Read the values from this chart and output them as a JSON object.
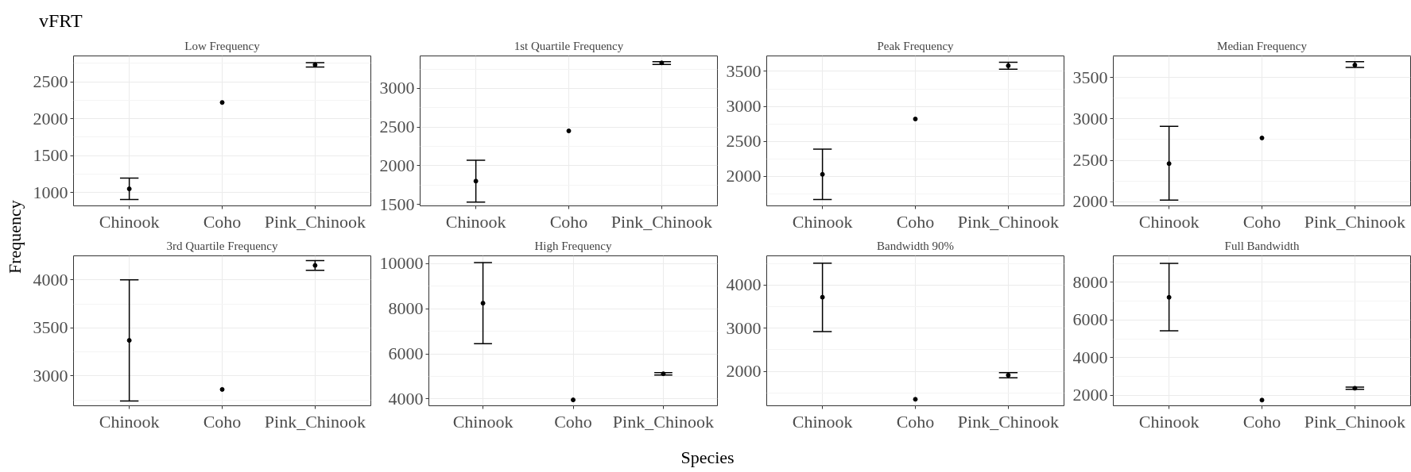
{
  "chart_data": [
    {
      "type": "scatter",
      "title": "Low Frequency",
      "annotations": [
        "vFRT",
        "Frequency",
        "Species"
      ],
      "categories": [
        "Chinook",
        "Coho",
        "Pink_Chinook"
      ],
      "values": [
        1050,
        2220,
        2730
      ],
      "errors": [
        [
          905,
          1195
        ],
        null,
        [
          2700,
          2760
        ]
      ],
      "ylim": [
        820,
        2850
      ],
      "yticks": [
        1000,
        1500,
        2000,
        2500
      ],
      "grid": true,
      "marker": "circle",
      "color": "#000000"
    },
    {
      "type": "scatter",
      "title": "1st Quartile Frequency",
      "categories": [
        "Chinook",
        "Coho",
        "Pink_Chinook"
      ],
      "values": [
        1800,
        2450,
        3330
      ],
      "errors": [
        [
          1530,
          2070
        ],
        null,
        [
          3310,
          3345
        ]
      ],
      "ylim": [
        1480,
        3420
      ],
      "yticks": [
        1500,
        2000,
        2500,
        3000
      ],
      "grid": true,
      "marker": "circle",
      "color": "#000000"
    },
    {
      "type": "scatter",
      "title": "Peak Frequency",
      "categories": [
        "Chinook",
        "Coho",
        "Pink_Chinook"
      ],
      "values": [
        2030,
        2820,
        3580
      ],
      "errors": [
        [
          1670,
          2390
        ],
        null,
        [
          3530,
          3630
        ]
      ],
      "ylim": [
        1580,
        3720
      ],
      "yticks": [
        2000,
        2500,
        3000,
        3500
      ],
      "grid": true,
      "marker": "circle",
      "color": "#000000"
    },
    {
      "type": "scatter",
      "title": "Median Frequency",
      "categories": [
        "Chinook",
        "Coho",
        "Pink_Chinook"
      ],
      "values": [
        2460,
        2770,
        3650
      ],
      "errors": [
        [
          2020,
          2910
        ],
        null,
        [
          3620,
          3690
        ]
      ],
      "ylim": [
        1950,
        3760
      ],
      "yticks": [
        2000,
        2500,
        3000,
        3500
      ],
      "grid": true,
      "marker": "circle",
      "color": "#000000"
    },
    {
      "type": "scatter",
      "title": "3rd Quartile Frequency",
      "categories": [
        "Chinook",
        "Coho",
        "Pink_Chinook"
      ],
      "values": [
        3370,
        2860,
        4150
      ],
      "errors": [
        [
          2740,
          4000
        ],
        null,
        [
          4100,
          4200
        ]
      ],
      "ylim": [
        2690,
        4250
      ],
      "yticks": [
        3000,
        3500,
        4000
      ],
      "grid": true,
      "marker": "circle",
      "color": "#000000"
    },
    {
      "type": "scatter",
      "title": "High Frequency",
      "categories": [
        "Chinook",
        "Coho",
        "Pink_Chinook"
      ],
      "values": [
        8250,
        3960,
        5120
      ],
      "errors": [
        [
          6450,
          10050
        ],
        null,
        [
          5060,
          5170
        ]
      ],
      "ylim": [
        3700,
        10350
      ],
      "yticks": [
        4000,
        6000,
        8000,
        10000
      ],
      "grid": true,
      "marker": "circle",
      "color": "#000000"
    },
    {
      "type": "scatter",
      "title": "Bandwidth 90%",
      "categories": [
        "Chinook",
        "Coho",
        "Pink_Chinook"
      ],
      "values": [
        3720,
        1350,
        1910
      ],
      "errors": [
        [
          2920,
          4510
        ],
        null,
        [
          1850,
          1970
        ]
      ],
      "ylim": [
        1200,
        4680
      ],
      "yticks": [
        2000,
        3000,
        4000
      ],
      "grid": true,
      "marker": "circle",
      "color": "#000000"
    },
    {
      "type": "scatter",
      "title": "Full Bandwidth",
      "categories": [
        "Chinook",
        "Coho",
        "Pink_Chinook"
      ],
      "values": [
        7200,
        1750,
        2380
      ],
      "errors": [
        [
          5420,
          9000
        ],
        null,
        [
          2320,
          2440
        ]
      ],
      "ylim": [
        1450,
        9400
      ],
      "yticks": [
        2000,
        4000,
        6000,
        8000
      ],
      "grid": true,
      "marker": "circle",
      "color": "#000000"
    }
  ]
}
